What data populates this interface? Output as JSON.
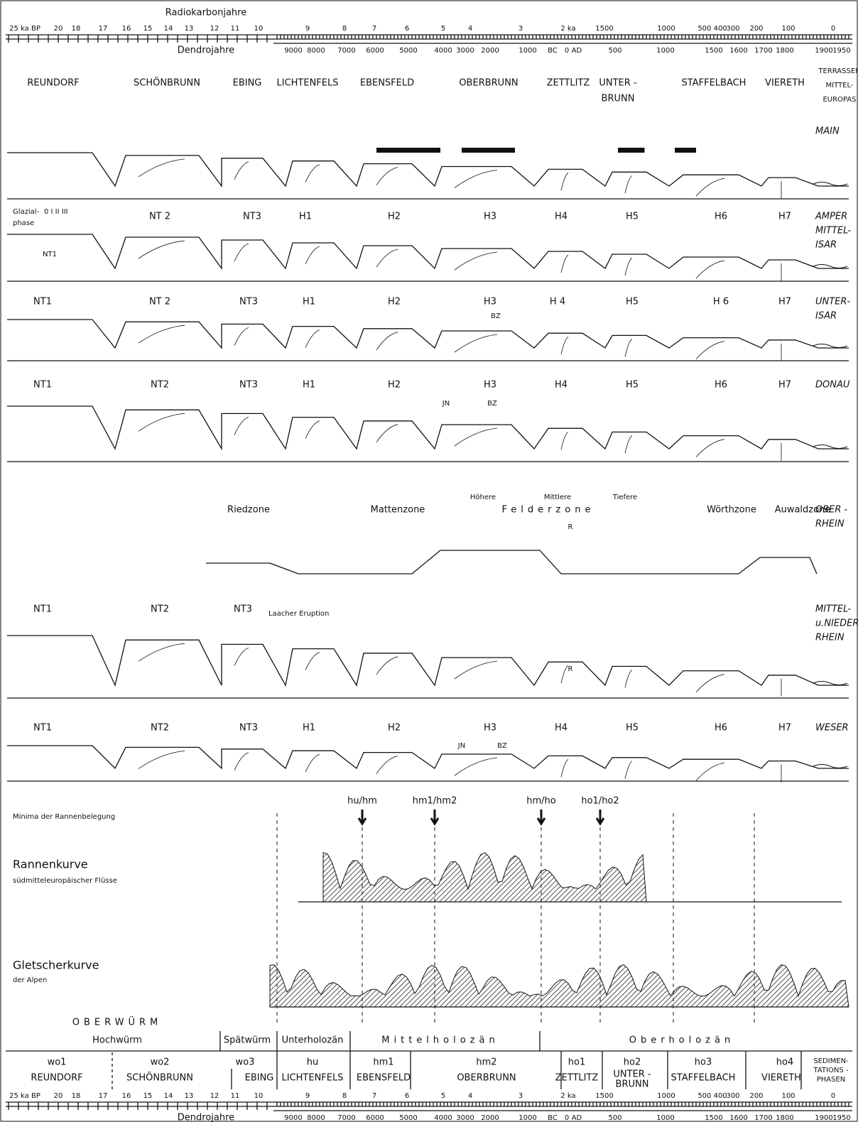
{
  "top_scale": {
    "radiocarbon_label": "Radiokarbonjahre",
    "radiocarbon": [
      "25 ka BP",
      "20",
      "18",
      "17",
      "16",
      "15",
      "14",
      "13",
      "12",
      "11",
      "10",
      "9",
      "8",
      "7",
      "6",
      "5",
      "4",
      "3",
      "2 ka",
      "1500",
      "1000",
      "500 400",
      "300",
      "200",
      "100",
      "0"
    ],
    "dendro_label": "Dendrojahre",
    "dendro": [
      "9000",
      "8000",
      "7000",
      "6000",
      "5000",
      "4000",
      "3000",
      "2000",
      "1000",
      "BC",
      "0",
      "AD",
      "500",
      "1000",
      "1500",
      "1600",
      "1700",
      "1800",
      "1900",
      "1950"
    ]
  },
  "sites": [
    [
      "REUNDORF"
    ],
    [
      "SCHÖNBRUNN"
    ],
    [
      "EBING"
    ],
    [
      "LICHTENFELS"
    ],
    [
      "EBENSFELD"
    ],
    [
      "OBERBRUNN"
    ],
    [
      "ZETTLITZ"
    ],
    [
      "UNTER -",
      "BRUNN"
    ],
    [
      "STAFFELBACH"
    ],
    [
      "VIERETH"
    ]
  ],
  "terraces_header": [
    "TERRASSEN",
    "MITTEL-",
    "EUROPAS"
  ],
  "rivers": [
    {
      "name": [
        "MAIN"
      ],
      "labels": []
    },
    {
      "name": [
        "AMPER",
        "MITTEL-",
        "ISAR"
      ],
      "labels": [
        "Glazial-",
        "phase",
        "0 I II III",
        "NT 2",
        "NT3",
        "H1",
        "H2",
        "H3",
        "H4",
        "H5",
        "H6",
        "H7",
        "NT1"
      ]
    },
    {
      "name": [
        "UNTER-",
        "ISAR"
      ],
      "labels": [
        "NT1",
        "NT 2",
        "NT3",
        "H1",
        "H2",
        "H3",
        "BZ",
        "H 4",
        "H5",
        "H 6",
        "H7"
      ]
    },
    {
      "name": [
        "DONAU"
      ],
      "labels": [
        "NT1",
        "NT2",
        "NT3",
        "H1",
        "H2",
        "H3",
        "H4",
        "H5",
        "H6",
        "H7",
        "JN",
        "BZ"
      ]
    },
    {
      "name": [
        "OBER -",
        "RHEIN"
      ],
      "labels": [
        "Riedzone",
        "Mattenzone",
        "Höhere",
        "Mittlere",
        "Tiefere",
        "Felderzone",
        "Wörthzone",
        "Auwaldzone",
        "R"
      ]
    },
    {
      "name": [
        "MITTEL-",
        "u.NIEDER-",
        "RHEIN"
      ],
      "labels": [
        "NT1",
        "NT2",
        "NT3",
        "Laacher Eruption",
        "R"
      ]
    },
    {
      "name": [
        "WESER"
      ],
      "labels": [
        "NT1",
        "NT2",
        "NT3",
        "H1",
        "H2",
        "H3",
        "H4",
        "H5",
        "H6",
        "H7",
        "JN",
        "BZ"
      ]
    }
  ],
  "curves": {
    "minima_label": "Minima der Rannenbelegung",
    "minima": [
      "hu/hm",
      "hm1/hm2",
      "hm/ho",
      "ho1/ho2"
    ],
    "rannen": [
      "Rannenkurve",
      "südmitteleuropäischer Flüsse"
    ],
    "gletscher": [
      "Gletscherkurve",
      "der Alpen"
    ]
  },
  "table": {
    "stage": "OBERWÜRM",
    "periods": [
      "Hochwürm",
      "Spätwürm",
      "Unterholozän",
      "Mittelholozän",
      "Oberholozän"
    ],
    "phases": [
      "wo1",
      "wo2",
      "wo3",
      "hu",
      "hm1",
      "hm2",
      "ho1",
      "ho2",
      "ho3",
      "ho4"
    ],
    "phases_label": [
      "SEDIMEN-",
      "TATIONS -",
      "PHASEN"
    ]
  }
}
